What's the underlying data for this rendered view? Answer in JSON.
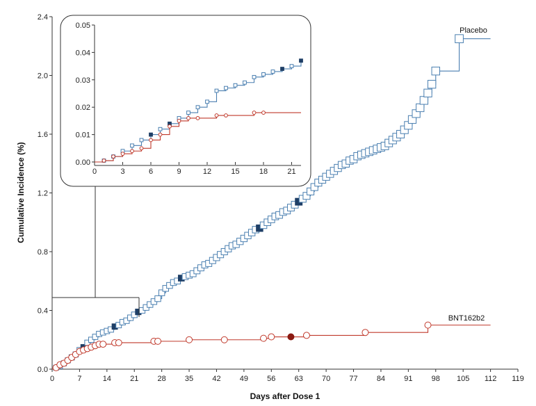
{
  "colors": {
    "placebo": "#4a7fb0",
    "placebo_dark": "#1f3f66",
    "vaccine": "#c0392b",
    "vaccine_dark": "#8b1a12",
    "axis": "#333333"
  },
  "chart_data": [
    {
      "id": "main",
      "type": "line",
      "step": true,
      "xlabel": "Days after Dose 1",
      "ylabel": "Cumulative Incidence (%)",
      "xlim": [
        0,
        119
      ],
      "ylim": [
        0,
        2.4
      ],
      "xticks": [
        0,
        7,
        14,
        21,
        28,
        35,
        42,
        49,
        56,
        63,
        70,
        77,
        84,
        91,
        98,
        105,
        112,
        119
      ],
      "yticks": [
        0.0,
        0.4,
        0.8,
        1.2,
        1.6,
        2.0,
        2.4
      ],
      "ytick_labels": [
        "0.0",
        "0.4",
        "0.8",
        "1.2",
        "1.6",
        "2.0",
        "2.4"
      ],
      "grid": false,
      "series": [
        {
          "name": "Placebo",
          "marker": "square",
          "dash": true,
          "x": [
            0,
            1,
            2,
            3,
            4,
            5,
            6,
            7,
            8,
            9,
            10,
            11,
            12,
            13,
            14,
            15,
            16,
            17,
            18,
            19,
            20,
            21,
            22,
            23,
            24,
            25,
            26,
            27,
            28,
            29,
            30,
            31,
            32,
            33,
            34,
            35,
            36,
            37,
            38,
            39,
            40,
            41,
            42,
            43,
            44,
            45,
            46,
            47,
            48,
            49,
            50,
            51,
            52,
            53,
            54,
            55,
            56,
            57,
            58,
            59,
            60,
            61,
            62,
            63,
            64,
            65,
            66,
            67,
            68,
            69,
            70,
            71,
            72,
            73,
            74,
            75,
            76,
            77,
            78,
            79,
            80,
            81,
            82,
            83,
            84,
            85,
            86,
            87,
            88,
            89,
            90,
            91,
            92,
            93,
            94,
            95,
            96,
            97,
            98,
            104,
            112
          ],
          "y": [
            0.0,
            0.01,
            0.02,
            0.04,
            0.06,
            0.08,
            0.1,
            0.13,
            0.15,
            0.18,
            0.2,
            0.22,
            0.24,
            0.25,
            0.26,
            0.27,
            0.29,
            0.3,
            0.32,
            0.33,
            0.35,
            0.37,
            0.39,
            0.4,
            0.42,
            0.44,
            0.46,
            0.48,
            0.52,
            0.55,
            0.57,
            0.59,
            0.6,
            0.62,
            0.63,
            0.64,
            0.65,
            0.67,
            0.69,
            0.71,
            0.72,
            0.74,
            0.76,
            0.78,
            0.8,
            0.82,
            0.84,
            0.85,
            0.87,
            0.89,
            0.91,
            0.93,
            0.95,
            0.96,
            0.98,
            1.0,
            1.02,
            1.04,
            1.05,
            1.07,
            1.08,
            1.1,
            1.12,
            1.14,
            1.16,
            1.18,
            1.21,
            1.24,
            1.27,
            1.29,
            1.31,
            1.33,
            1.35,
            1.37,
            1.39,
            1.4,
            1.42,
            1.43,
            1.45,
            1.46,
            1.47,
            1.48,
            1.49,
            1.5,
            1.51,
            1.52,
            1.54,
            1.56,
            1.58,
            1.6,
            1.63,
            1.66,
            1.7,
            1.74,
            1.78,
            1.83,
            1.88,
            1.94,
            2.03,
            2.25,
            2.25
          ],
          "filled_x": [
            5,
            8,
            16,
            22,
            33,
            53,
            63
          ]
        },
        {
          "name": "BNT162b2",
          "marker": "circle",
          "dash": false,
          "x": [
            0,
            1,
            2,
            3,
            4,
            5,
            6,
            7,
            8,
            9,
            10,
            11,
            12,
            13,
            16,
            17,
            26,
            27,
            35,
            44,
            54,
            56,
            61,
            65,
            80,
            96,
            112
          ],
          "y": [
            0.0,
            0.01,
            0.03,
            0.04,
            0.06,
            0.08,
            0.1,
            0.12,
            0.13,
            0.14,
            0.15,
            0.16,
            0.17,
            0.17,
            0.18,
            0.18,
            0.19,
            0.19,
            0.2,
            0.2,
            0.21,
            0.22,
            0.22,
            0.23,
            0.25,
            0.3,
            0.3
          ],
          "filled_x": [
            61
          ]
        }
      ]
    },
    {
      "id": "inset",
      "type": "line",
      "step": true,
      "xlim": [
        0,
        22
      ],
      "ylim": [
        0,
        0.05
      ],
      "xticks": [
        0,
        3,
        6,
        9,
        12,
        15,
        18,
        21
      ],
      "yticks": [
        0.0,
        0.01,
        0.02,
        0.03,
        0.04,
        0.05
      ],
      "ytick_labels": [
        "0.00",
        "0.01",
        "0.02",
        "0.03",
        "0.04",
        "0.05"
      ],
      "grid": false,
      "series": [
        {
          "name": "Placebo",
          "x": [
            0,
            1,
            2,
            3,
            4,
            5,
            6,
            7,
            8,
            9,
            10,
            11,
            12,
            13,
            14,
            15,
            16,
            17,
            18,
            19,
            20,
            21,
            22
          ],
          "y": [
            0.0,
            0.0005,
            0.002,
            0.004,
            0.006,
            0.008,
            0.01,
            0.012,
            0.014,
            0.016,
            0.018,
            0.02,
            0.022,
            0.026,
            0.027,
            0.028,
            0.029,
            0.031,
            0.032,
            0.033,
            0.034,
            0.035,
            0.037
          ],
          "filled_x": [
            6,
            8,
            20,
            22
          ]
        },
        {
          "name": "BNT162b2",
          "x": [
            0,
            1,
            2,
            3,
            4,
            5,
            6,
            7,
            8,
            9,
            10,
            11,
            13,
            14,
            17,
            18,
            22
          ],
          "y": [
            0.0,
            0.0005,
            0.002,
            0.003,
            0.004,
            0.005,
            0.008,
            0.01,
            0.013,
            0.015,
            0.016,
            0.016,
            0.017,
            0.017,
            0.018,
            0.018,
            0.018
          ],
          "filled_x": []
        }
      ]
    }
  ]
}
